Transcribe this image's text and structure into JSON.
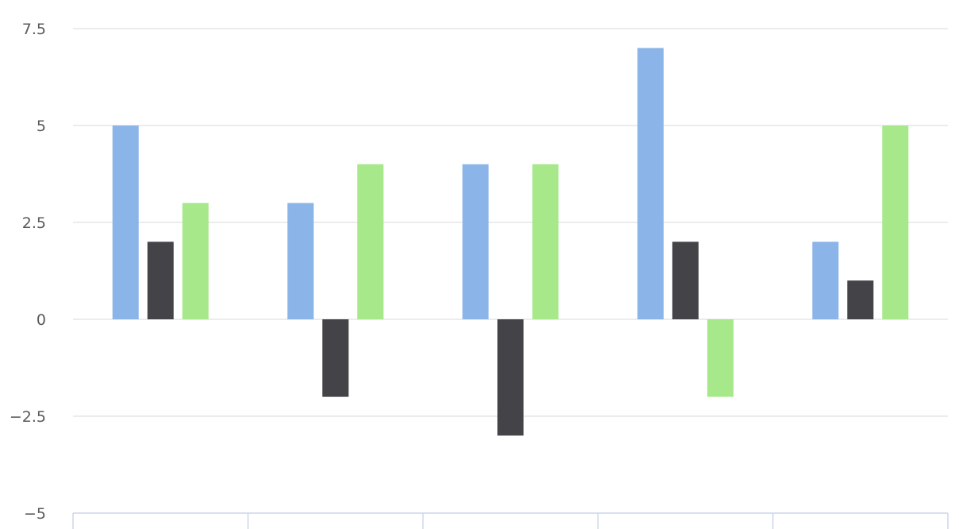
{
  "chart_data": {
    "type": "bar",
    "categories": [
      "",
      "",
      "",
      "",
      ""
    ],
    "series": [
      {
        "values": [
          5,
          3,
          4,
          7,
          2
        ],
        "color": "#8bb4e8"
      },
      {
        "values": [
          2,
          -2,
          -3,
          2,
          1
        ],
        "color": "#434348"
      },
      {
        "values": [
          3,
          4,
          4,
          -2,
          5
        ],
        "color": "#a6e88a"
      }
    ],
    "ylim": [
      -5,
      7.5
    ],
    "yticks": [
      7.5,
      5,
      2.5,
      0,
      -2.5,
      -5
    ],
    "ytick_labels": [
      "7.5",
      "5",
      "2.5",
      "0",
      "−2.5",
      "−5"
    ],
    "grid": true,
    "title": "",
    "xlabel": "",
    "ylabel": ""
  }
}
